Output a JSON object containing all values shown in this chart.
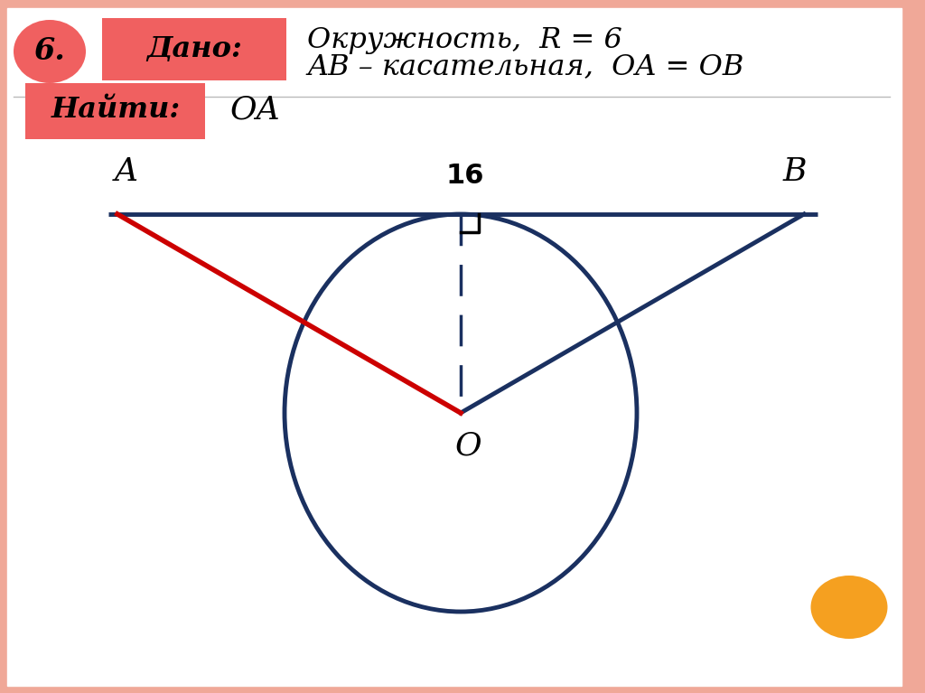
{
  "fig_width": 10.24,
  "fig_height": 7.67,
  "border_color": "#F0A898",
  "white_color": "#FFFFFF",
  "salmon_color": "#F06060",
  "dark_blue": "#1a3060",
  "red_line": "#CC0000",
  "orange_color": "#F5A020",
  "number_label": "6.",
  "dado_label": "Дано:",
  "najti_label": "Найти:",
  "line1_text": "Окружность,  R = 6",
  "line2_text": "AB – касательная,  OA = OB",
  "find_text": "OA",
  "label_16": "16",
  "label_A": "A",
  "label_B": "B",
  "label_O": "O"
}
